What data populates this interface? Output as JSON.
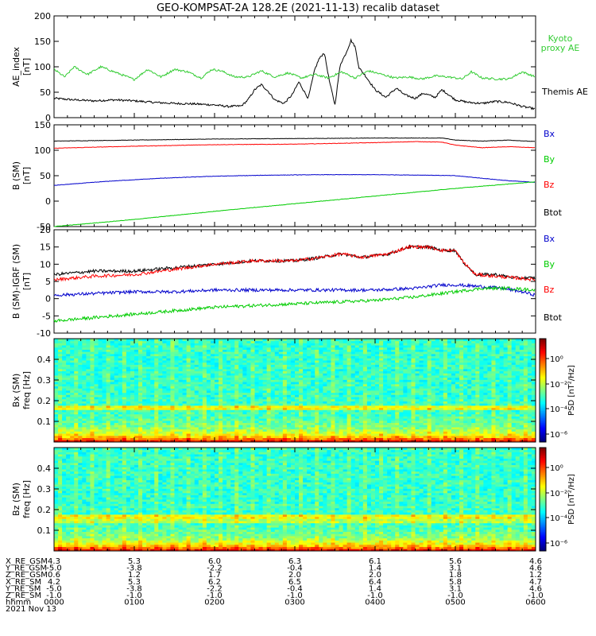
{
  "title": "GEO-KOMPSAT-2A 128.2E (2021-11-13) recalib dataset",
  "colors": {
    "black": "#000000",
    "red": "#ff0000",
    "blue": "#0000cc",
    "green": "#00cc00",
    "kyoto": "#33cc33"
  },
  "chart_data": [
    {
      "type": "line",
      "ylabel": [
        "AE_index",
        "[nT]"
      ],
      "ylim": [
        0,
        200
      ],
      "yticks": [
        0,
        50,
        100,
        150,
        200
      ],
      "xlim": [
        0,
        360
      ],
      "legend": [
        {
          "text": "Kyoto",
          "color": "#33cc33"
        },
        {
          "text": "proxy AE",
          "color": "#33cc33"
        },
        {
          "text": "Themis AE",
          "color": "#000000"
        }
      ],
      "series": [
        {
          "name": "Themis AE",
          "color": "#000000",
          "x": [
            0,
            15,
            30,
            45,
            60,
            75,
            90,
            105,
            120,
            130,
            140,
            145,
            150,
            155,
            160,
            165,
            172,
            178,
            183,
            190,
            195,
            198,
            202,
            206,
            210,
            214,
            218,
            222,
            225,
            228,
            232,
            240,
            248,
            256,
            262,
            270,
            276,
            285,
            290,
            300,
            310,
            320,
            330,
            340,
            350,
            360
          ],
          "y": [
            38,
            35,
            33,
            35,
            33,
            30,
            28,
            27,
            25,
            22,
            23,
            35,
            55,
            65,
            52,
            35,
            28,
            45,
            70,
            38,
            95,
            115,
            128,
            70,
            25,
            105,
            125,
            152,
            140,
            98,
            85,
            55,
            40,
            58,
            45,
            38,
            48,
            40,
            55,
            35,
            30,
            28,
            32,
            30,
            22,
            17
          ]
        },
        {
          "name": "Kyoto proxy AE",
          "color": "#33cc33",
          "x": [
            0,
            8,
            15,
            25,
            35,
            50,
            60,
            70,
            80,
            90,
            100,
            110,
            118,
            125,
            135,
            145,
            155,
            165,
            175,
            185,
            195,
            205,
            215,
            225,
            235,
            245,
            255,
            265,
            275,
            285,
            295,
            305,
            312,
            320,
            330,
            340,
            350,
            360
          ],
          "y": [
            95,
            80,
            100,
            85,
            100,
            85,
            75,
            95,
            80,
            95,
            90,
            78,
            95,
            92,
            80,
            80,
            92,
            80,
            88,
            78,
            85,
            78,
            90,
            78,
            92,
            85,
            78,
            80,
            76,
            82,
            80,
            76,
            90,
            78,
            76,
            76,
            90,
            80
          ]
        }
      ]
    },
    {
      "type": "line",
      "ylabel": [
        "B (SM)",
        "[nT]"
      ],
      "ylim": [
        -50,
        150
      ],
      "yticks": [
        -50,
        0,
        50,
        100,
        150
      ],
      "xlim": [
        0,
        360
      ],
      "legend": [
        {
          "text": "Bx",
          "color": "#0000cc"
        },
        {
          "text": "By",
          "color": "#00cc00"
        },
        {
          "text": "Bz",
          "color": "#ff0000"
        },
        {
          "text": "Btot",
          "color": "#000000"
        }
      ],
      "series": [
        {
          "name": "Btot",
          "color": "#000000",
          "x": [
            0,
            60,
            120,
            180,
            240,
            270,
            290,
            300,
            320,
            340,
            360
          ],
          "y": [
            118,
            120,
            122,
            123,
            124,
            124,
            124,
            120,
            118,
            120,
            117
          ]
        },
        {
          "name": "Bz",
          "color": "#ff0000",
          "x": [
            0,
            60,
            120,
            180,
            240,
            270,
            290,
            300,
            320,
            340,
            360
          ],
          "y": [
            104,
            108,
            111,
            112,
            115,
            117,
            116,
            110,
            105,
            107,
            105
          ]
        },
        {
          "name": "Bx",
          "color": "#0000cc",
          "x": [
            0,
            40,
            80,
            120,
            160,
            200,
            240,
            280,
            300,
            320,
            340,
            360
          ],
          "y": [
            31,
            39,
            45,
            49,
            51,
            52,
            52,
            51,
            50,
            45,
            40,
            37
          ]
        },
        {
          "name": "By",
          "color": "#00cc00",
          "x": [
            0,
            60,
            120,
            180,
            240,
            300,
            360
          ],
          "y": [
            -50,
            -36,
            -20,
            -5,
            10,
            25,
            38
          ]
        }
      ]
    },
    {
      "type": "line",
      "ylabel": [
        "B (SM)-IGRF (SM)",
        "[nT]"
      ],
      "ylim": [
        -10,
        20
      ],
      "yticks": [
        -10,
        -5,
        0,
        5,
        10,
        15,
        20
      ],
      "xlim": [
        0,
        360
      ],
      "legend": [
        {
          "text": "Bx",
          "color": "#0000cc"
        },
        {
          "text": "By",
          "color": "#00cc00"
        },
        {
          "text": "Bz",
          "color": "#ff0000"
        },
        {
          "text": "Btot",
          "color": "#000000"
        }
      ],
      "series": [
        {
          "name": "Btot",
          "color": "#000000",
          "x": [
            0,
            30,
            60,
            90,
            120,
            150,
            180,
            200,
            215,
            230,
            250,
            265,
            280,
            290,
            300,
            305,
            315,
            330,
            345,
            360
          ],
          "y": [
            7,
            8,
            8,
            9,
            10,
            11,
            11,
            12,
            13,
            12,
            13,
            15,
            15,
            14,
            14,
            11,
            7,
            7,
            6,
            6
          ]
        },
        {
          "name": "Bz",
          "color": "#ff0000",
          "x": [
            0,
            30,
            60,
            90,
            120,
            150,
            180,
            200,
            215,
            230,
            250,
            265,
            280,
            290,
            300,
            305,
            315,
            330,
            345,
            360
          ],
          "y": [
            5.5,
            6.5,
            7,
            8.5,
            10,
            11,
            11,
            12,
            13,
            12,
            13,
            15,
            15,
            14,
            14,
            11,
            7,
            6.5,
            6,
            5.5
          ]
        },
        {
          "name": "Bx",
          "color": "#0000cc",
          "x": [
            0,
            30,
            60,
            90,
            120,
            150,
            180,
            210,
            240,
            270,
            290,
            300,
            320,
            335,
            350,
            360
          ],
          "y": [
            1,
            1.5,
            2,
            2,
            2.5,
            2.5,
            2.5,
            2.5,
            2.5,
            3,
            4,
            4,
            3.5,
            3,
            2,
            1
          ]
        },
        {
          "name": "By",
          "color": "#00cc00",
          "x": [
            0,
            30,
            60,
            90,
            120,
            150,
            180,
            210,
            240,
            270,
            300,
            320,
            340,
            360
          ],
          "y": [
            -6.5,
            -5.5,
            -4.5,
            -3.5,
            -2.5,
            -2,
            -1.5,
            -1,
            -0.5,
            0.5,
            2,
            3,
            3,
            2.5
          ]
        }
      ]
    },
    {
      "type": "heatmap",
      "ylabel": [
        "Bx (SM)",
        "freq [Hz]"
      ],
      "ylim": [
        0,
        0.5
      ],
      "yticks": [
        0.1,
        0.2,
        0.3,
        0.4
      ],
      "colorbar": {
        "label": "PSD [nT²/Hz]",
        "ticks": [
          "10⁰",
          "10⁻²",
          "10⁻⁴",
          "10⁻⁶"
        ]
      }
    },
    {
      "type": "heatmap",
      "ylabel": [
        "Bz (SM)",
        "freq [Hz]"
      ],
      "ylim": [
        0,
        0.5
      ],
      "yticks": [
        0.1,
        0.2,
        0.3,
        0.4
      ],
      "colorbar": {
        "label": "PSD [nT²/Hz]",
        "ticks": [
          "10⁰",
          "10⁻²",
          "10⁻⁴",
          "10⁻⁶"
        ]
      }
    }
  ],
  "ephemeris": {
    "labels": [
      "X_RE_GSM",
      "Y_RE_GSM",
      "Z_RE_GSM",
      "X_RE_SM",
      "Y_RE_SM",
      "Z_RE_SM",
      "hhmm"
    ],
    "columns": [
      [
        "4.3",
        "-5.0",
        "0.6",
        "4.2",
        "-5.0",
        "-1.0",
        "0000"
      ],
      [
        "5.3",
        "-3.8",
        "1.2",
        "5.3",
        "-3.8",
        "-1.0",
        "0100"
      ],
      [
        "6.0",
        "-2.2",
        "1.7",
        "6.2",
        "-2.2",
        "-1.0",
        "0200"
      ],
      [
        "6.3",
        "-0.4",
        "2.0",
        "6.5",
        "-0.4",
        "-1.0",
        "0300"
      ],
      [
        "6.1",
        "1.4",
        "2.0",
        "6.4",
        "1.4",
        "-1.0",
        "0400"
      ],
      [
        "5.6",
        "3.1",
        "1.8",
        "5.8",
        "3.1",
        "-1.0",
        "0500"
      ],
      [
        "4.6",
        "4.6",
        "1.2",
        "4.7",
        "4.6",
        "-1.0",
        "0600"
      ]
    ],
    "date": "2021 Nov 13"
  }
}
